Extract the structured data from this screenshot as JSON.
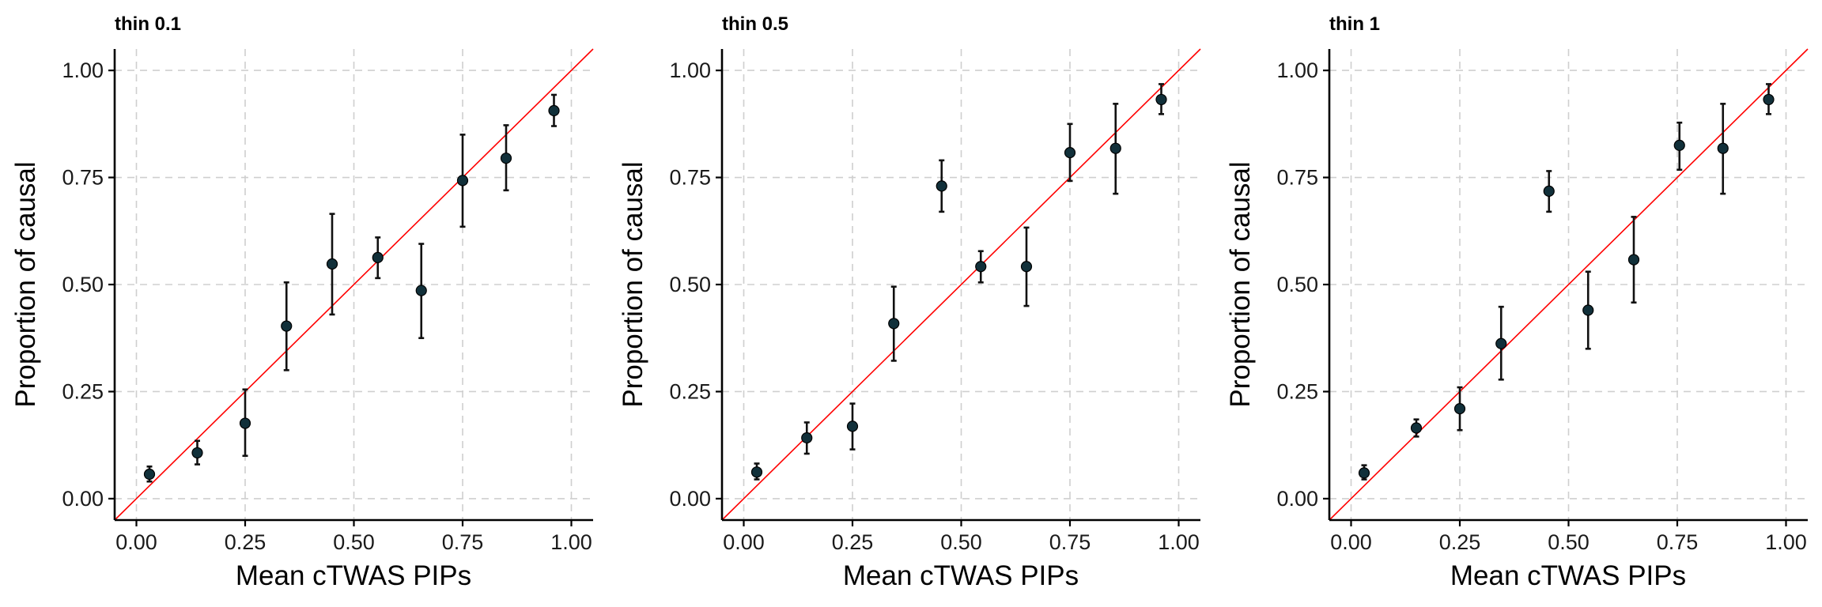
{
  "colors": {
    "reference_line": "#ff0000",
    "point": "#11303a",
    "errorbar": "#111111",
    "grid": "#cfcfcf"
  },
  "chart_data": [
    {
      "type": "scatter",
      "title": "thin 0.1",
      "xlabel": "Mean cTWAS PIPs",
      "ylabel": "Proportion of causal",
      "xlim": [
        -0.05,
        1.05
      ],
      "ylim": [
        -0.05,
        1.05
      ],
      "x_ticks": [
        0.0,
        0.25,
        0.5,
        0.75,
        1.0
      ],
      "y_ticks": [
        0.0,
        0.25,
        0.5,
        0.75,
        1.0
      ],
      "x_tick_labels": [
        "0.00",
        "0.25",
        "0.50",
        "0.75",
        "1.00"
      ],
      "y_tick_labels": [
        "0.00",
        "0.25",
        "0.50",
        "0.75",
        "1.00"
      ],
      "reference_line": "y = x",
      "points": [
        {
          "x": 0.03,
          "y": 0.057,
          "lo": 0.04,
          "hi": 0.075
        },
        {
          "x": 0.14,
          "y": 0.107,
          "lo": 0.08,
          "hi": 0.135
        },
        {
          "x": 0.25,
          "y": 0.176,
          "lo": 0.1,
          "hi": 0.255
        },
        {
          "x": 0.345,
          "y": 0.403,
          "lo": 0.3,
          "hi": 0.505
        },
        {
          "x": 0.45,
          "y": 0.548,
          "lo": 0.43,
          "hi": 0.665
        },
        {
          "x": 0.555,
          "y": 0.563,
          "lo": 0.515,
          "hi": 0.61
        },
        {
          "x": 0.655,
          "y": 0.486,
          "lo": 0.375,
          "hi": 0.595
        },
        {
          "x": 0.75,
          "y": 0.743,
          "lo": 0.635,
          "hi": 0.85
        },
        {
          "x": 0.85,
          "y": 0.795,
          "lo": 0.72,
          "hi": 0.872
        },
        {
          "x": 0.96,
          "y": 0.906,
          "lo": 0.87,
          "hi": 0.943
        }
      ]
    },
    {
      "type": "scatter",
      "title": "thin 0.5",
      "xlabel": "Mean cTWAS PIPs",
      "ylabel": "Proportion of causal",
      "xlim": [
        -0.05,
        1.05
      ],
      "ylim": [
        -0.05,
        1.05
      ],
      "x_ticks": [
        0.0,
        0.25,
        0.5,
        0.75,
        1.0
      ],
      "y_ticks": [
        0.0,
        0.25,
        0.5,
        0.75,
        1.0
      ],
      "x_tick_labels": [
        "0.00",
        "0.25",
        "0.50",
        "0.75",
        "1.00"
      ],
      "y_tick_labels": [
        "0.00",
        "0.25",
        "0.50",
        "0.75",
        "1.00"
      ],
      "reference_line": "y = x",
      "points": [
        {
          "x": 0.03,
          "y": 0.062,
          "lo": 0.045,
          "hi": 0.082
        },
        {
          "x": 0.145,
          "y": 0.142,
          "lo": 0.105,
          "hi": 0.178
        },
        {
          "x": 0.25,
          "y": 0.169,
          "lo": 0.115,
          "hi": 0.222
        },
        {
          "x": 0.345,
          "y": 0.409,
          "lo": 0.322,
          "hi": 0.495
        },
        {
          "x": 0.455,
          "y": 0.73,
          "lo": 0.67,
          "hi": 0.79
        },
        {
          "x": 0.545,
          "y": 0.542,
          "lo": 0.505,
          "hi": 0.578
        },
        {
          "x": 0.65,
          "y": 0.542,
          "lo": 0.45,
          "hi": 0.633
        },
        {
          "x": 0.75,
          "y": 0.808,
          "lo": 0.742,
          "hi": 0.875
        },
        {
          "x": 0.855,
          "y": 0.818,
          "lo": 0.712,
          "hi": 0.922
        },
        {
          "x": 0.96,
          "y": 0.932,
          "lo": 0.898,
          "hi": 0.968
        }
      ]
    },
    {
      "type": "scatter",
      "title": "thin 1",
      "xlabel": "Mean cTWAS PIPs",
      "ylabel": "Proportion of causal",
      "xlim": [
        -0.05,
        1.05
      ],
      "ylim": [
        -0.05,
        1.05
      ],
      "x_ticks": [
        0.0,
        0.25,
        0.5,
        0.75,
        1.0
      ],
      "y_ticks": [
        0.0,
        0.25,
        0.5,
        0.75,
        1.0
      ],
      "x_tick_labels": [
        "0.00",
        "0.25",
        "0.50",
        "0.75",
        "1.00"
      ],
      "y_tick_labels": [
        "0.00",
        "0.25",
        "0.50",
        "0.75",
        "1.00"
      ],
      "reference_line": "y = x",
      "points": [
        {
          "x": 0.03,
          "y": 0.06,
          "lo": 0.045,
          "hi": 0.078
        },
        {
          "x": 0.15,
          "y": 0.165,
          "lo": 0.145,
          "hi": 0.185
        },
        {
          "x": 0.25,
          "y": 0.21,
          "lo": 0.16,
          "hi": 0.26
        },
        {
          "x": 0.345,
          "y": 0.362,
          "lo": 0.278,
          "hi": 0.448
        },
        {
          "x": 0.455,
          "y": 0.718,
          "lo": 0.67,
          "hi": 0.765
        },
        {
          "x": 0.545,
          "y": 0.44,
          "lo": 0.35,
          "hi": 0.53
        },
        {
          "x": 0.65,
          "y": 0.558,
          "lo": 0.458,
          "hi": 0.658
        },
        {
          "x": 0.755,
          "y": 0.825,
          "lo": 0.768,
          "hi": 0.878
        },
        {
          "x": 0.855,
          "y": 0.818,
          "lo": 0.712,
          "hi": 0.922
        },
        {
          "x": 0.96,
          "y": 0.932,
          "lo": 0.898,
          "hi": 0.968
        }
      ]
    }
  ]
}
